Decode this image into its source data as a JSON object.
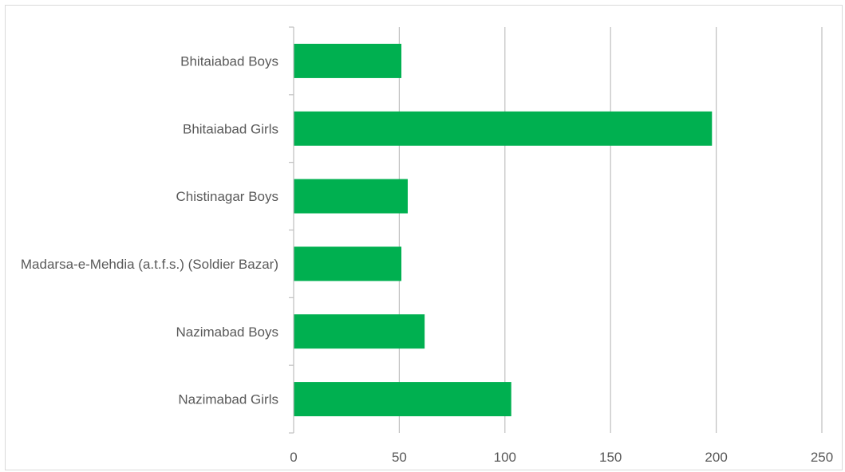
{
  "chart_data": {
    "type": "bar",
    "orientation": "horizontal",
    "title": "",
    "xlabel": "",
    "ylabel": "",
    "categories": [
      "Bhitaiabad Boys",
      "Bhitaiabad Girls",
      "Chistinagar Boys",
      "Madarsa-e-Mehdia (a.t.f.s.) (Soldier Bazar)",
      "Nazimabad Boys",
      "Nazimabad Girls"
    ],
    "values": [
      51,
      198,
      54,
      51,
      62,
      103
    ],
    "xlim": [
      0,
      250
    ],
    "ticks": [
      "0",
      "50",
      "100",
      "150",
      "200",
      "250"
    ],
    "grid": "vertical",
    "legend": "none",
    "colors": {
      "bar": "#00b050",
      "grid": "#bfbfbf",
      "axis": "#bfbfbf",
      "text": "#595959"
    }
  }
}
